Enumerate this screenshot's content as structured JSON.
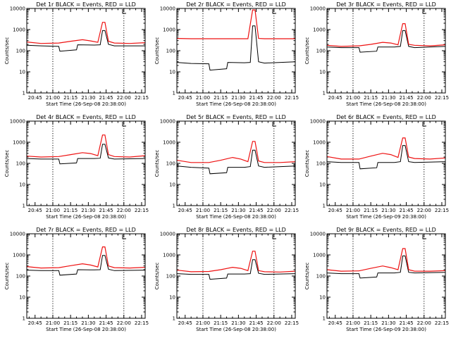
{
  "colors": {
    "events": "#000000",
    "lld": "#ee1111",
    "background": "#ffffff"
  },
  "chart_data": [
    {
      "type": "line",
      "title": "Det 1r BLACK = Events, RED = LLD",
      "xlabel": "Start Time (26-Sep-08 20:38:00)",
      "ylabel": "Counts/sec",
      "x_ticks": [
        "20:45",
        "21:00",
        "21:15",
        "21:30",
        "21:45",
        "22:00",
        "22:15"
      ],
      "y_ticks": [
        "1",
        "10",
        "100",
        "1000",
        "10000"
      ],
      "ylim": [
        1,
        10000
      ],
      "yscale": "log",
      "xlim": [
        "20:38",
        "22:18"
      ],
      "dotted_lines": [
        "21:00",
        "22:00"
      ],
      "series": [
        {
          "name": "Events",
          "color": "#000000",
          "x": [
            "20:38",
            "20:50",
            "21:05",
            "21:06",
            "21:20",
            "21:21",
            "21:35",
            "21:40",
            "21:42",
            "21:44",
            "21:47",
            "21:52",
            "22:18"
          ],
          "y": [
            180,
            170,
            160,
            95,
            110,
            190,
            185,
            190,
            900,
            900,
            200,
            170,
            170
          ]
        },
        {
          "name": "LLD",
          "color": "#ee1111",
          "x": [
            "20:38",
            "20:50",
            "21:05",
            "21:15",
            "21:25",
            "21:32",
            "21:38",
            "21:42",
            "21:44",
            "21:47",
            "21:52",
            "22:05",
            "22:18"
          ],
          "y": [
            260,
            220,
            230,
            280,
            330,
            290,
            250,
            2200,
            2200,
            280,
            230,
            220,
            240
          ]
        }
      ]
    },
    {
      "type": "line",
      "title": "Det 2r BLACK = Events, RED = LLD",
      "xlabel": "Start Time (26-Sep-08 20:38:00)",
      "ylabel": "Counts/sec",
      "x_ticks": [
        "20:45",
        "21:00",
        "21:15",
        "21:30",
        "21:45",
        "22:00",
        "22:15"
      ],
      "y_ticks": [
        "1",
        "10",
        "100",
        "1000",
        "10000"
      ],
      "ylim": [
        1,
        10000
      ],
      "yscale": "log",
      "xlim": [
        "20:38",
        "22:18"
      ],
      "dotted_lines": [
        "21:00",
        "22:00"
      ],
      "series": [
        {
          "name": "Events",
          "color": "#000000",
          "x": [
            "20:38",
            "20:50",
            "21:05",
            "21:06",
            "21:20",
            "21:21",
            "21:35",
            "21:40",
            "21:42",
            "21:44",
            "21:47",
            "21:52",
            "22:18"
          ],
          "y": [
            28,
            25,
            24,
            12,
            14,
            28,
            27,
            28,
            1500,
            1500,
            30,
            26,
            30
          ]
        },
        {
          "name": "LLD",
          "color": "#ee1111",
          "x": [
            "20:38",
            "20:50",
            "21:05",
            "21:15",
            "21:25",
            "21:32",
            "21:38",
            "21:42",
            "21:44",
            "21:47",
            "21:52",
            "22:05",
            "22:18"
          ],
          "y": [
            380,
            370,
            370,
            370,
            370,
            370,
            370,
            8500,
            8500,
            380,
            370,
            370,
            370
          ]
        }
      ]
    },
    {
      "type": "line",
      "title": "Det 3r BLACK = Events, RED = LLD",
      "xlabel": "Start Time (26-Sep-08 20:38:00)",
      "ylabel": "Counts/sec",
      "x_ticks": [
        "20:45",
        "21:00",
        "21:15",
        "21:30",
        "21:45",
        "22:00",
        "22:15"
      ],
      "y_ticks": [
        "1",
        "10",
        "100",
        "1000",
        "10000"
      ],
      "ylim": [
        1,
        10000
      ],
      "yscale": "log",
      "xlim": [
        "20:38",
        "22:18"
      ],
      "dotted_lines": [
        "21:00",
        "22:00"
      ],
      "series": [
        {
          "name": "Events",
          "color": "#000000",
          "x": [
            "20:38",
            "20:50",
            "21:05",
            "21:06",
            "21:20",
            "21:21",
            "21:35",
            "21:40",
            "21:42",
            "21:44",
            "21:47",
            "21:52",
            "22:18"
          ],
          "y": [
            150,
            140,
            140,
            85,
            95,
            150,
            150,
            160,
            900,
            900,
            160,
            140,
            160
          ]
        },
        {
          "name": "LLD",
          "color": "#ee1111",
          "x": [
            "20:38",
            "20:50",
            "21:05",
            "21:15",
            "21:25",
            "21:32",
            "21:38",
            "21:42",
            "21:44",
            "21:47",
            "21:52",
            "22:05",
            "22:18"
          ],
          "y": [
            180,
            160,
            170,
            200,
            250,
            230,
            190,
            1900,
            1900,
            200,
            180,
            170,
            190
          ]
        }
      ]
    },
    {
      "type": "line",
      "title": "Det 4r BLACK = Events, RED = LLD",
      "xlabel": "Start Time (26-Sep-08 20:38:00)",
      "ylabel": "Counts/sec",
      "x_ticks": [
        "20:45",
        "21:00",
        "21:15",
        "21:30",
        "21:45",
        "22:00",
        "22:15"
      ],
      "y_ticks": [
        "1",
        "10",
        "100",
        "1000",
        "10000"
      ],
      "ylim": [
        1,
        10000
      ],
      "yscale": "log",
      "xlim": [
        "20:38",
        "22:18"
      ],
      "dotted_lines": [
        "21:00",
        "22:00"
      ],
      "series": [
        {
          "name": "Events",
          "color": "#000000",
          "x": [
            "20:38",
            "20:50",
            "21:05",
            "21:06",
            "21:20",
            "21:21",
            "21:35",
            "21:40",
            "21:42",
            "21:44",
            "21:47",
            "21:52",
            "22:18"
          ],
          "y": [
            170,
            160,
            160,
            95,
            105,
            170,
            170,
            175,
            800,
            800,
            180,
            160,
            170
          ]
        },
        {
          "name": "LLD",
          "color": "#ee1111",
          "x": [
            "20:38",
            "20:50",
            "21:05",
            "21:15",
            "21:25",
            "21:32",
            "21:38",
            "21:42",
            "21:44",
            "21:47",
            "21:52",
            "22:05",
            "22:18"
          ],
          "y": [
            220,
            200,
            210,
            260,
            320,
            290,
            230,
            2200,
            2200,
            260,
            210,
            200,
            230
          ]
        }
      ]
    },
    {
      "type": "line",
      "title": "Det 5r BLACK = Events, RED = LLD",
      "xlabel": "Start Time (26-Sep-08 20:38:00)",
      "ylabel": "Counts/sec",
      "x_ticks": [
        "20:45",
        "21:00",
        "21:15",
        "21:30",
        "21:45",
        "22:00",
        "22:15"
      ],
      "y_ticks": [
        "1",
        "10",
        "100",
        "1000",
        "10000"
      ],
      "ylim": [
        1,
        10000
      ],
      "yscale": "log",
      "xlim": [
        "20:38",
        "22:18"
      ],
      "dotted_lines": [
        "21:00",
        "22:00"
      ],
      "series": [
        {
          "name": "Events",
          "color": "#000000",
          "x": [
            "20:38",
            "20:50",
            "21:05",
            "21:06",
            "21:20",
            "21:21",
            "21:35",
            "21:40",
            "21:42",
            "21:44",
            "21:47",
            "21:52",
            "22:18"
          ],
          "y": [
            75,
            65,
            60,
            32,
            36,
            65,
            65,
            70,
            420,
            420,
            75,
            65,
            75
          ]
        },
        {
          "name": "LLD",
          "color": "#ee1111",
          "x": [
            "20:38",
            "20:50",
            "21:05",
            "21:15",
            "21:25",
            "21:32",
            "21:38",
            "21:42",
            "21:44",
            "21:47",
            "21:52",
            "22:05",
            "22:18"
          ],
          "y": [
            140,
            110,
            110,
            140,
            190,
            160,
            120,
            1100,
            1100,
            130,
            110,
            110,
            120
          ]
        }
      ]
    },
    {
      "type": "line",
      "title": "Det 6r BLACK = Events, RED = LLD",
      "xlabel": "Start Time (26-Sep-09 20:38:00)",
      "ylabel": "Counts/sec",
      "x_ticks": [
        "20:45",
        "21:00",
        "21:15",
        "21:30",
        "21:45",
        "22:00",
        "22:15"
      ],
      "y_ticks": [
        "1",
        "10",
        "100",
        "1000",
        "10000"
      ],
      "ylim": [
        1,
        10000
      ],
      "yscale": "log",
      "xlim": [
        "20:38",
        "22:18"
      ],
      "dotted_lines": [
        "21:00",
        "22:00"
      ],
      "series": [
        {
          "name": "Events",
          "color": "#000000",
          "x": [
            "20:38",
            "20:50",
            "21:05",
            "21:06",
            "21:20",
            "21:21",
            "21:35",
            "21:40",
            "21:42",
            "21:44",
            "21:47",
            "21:52",
            "22:18"
          ],
          "y": [
            120,
            110,
            110,
            55,
            62,
            110,
            110,
            120,
            700,
            700,
            120,
            110,
            120
          ]
        },
        {
          "name": "LLD",
          "color": "#ee1111",
          "x": [
            "20:38",
            "20:50",
            "21:05",
            "21:15",
            "21:25",
            "21:32",
            "21:38",
            "21:42",
            "21:44",
            "21:47",
            "21:52",
            "22:05",
            "22:18"
          ],
          "y": [
            210,
            160,
            160,
            220,
            300,
            260,
            190,
            1600,
            1600,
            200,
            170,
            160,
            180
          ]
        }
      ]
    },
    {
      "type": "line",
      "title": "Det 7r BLACK = Events, RED = LLD",
      "xlabel": "Start Time (26-Sep-08 20:38:00)",
      "ylabel": "Counts/sec",
      "x_ticks": [
        "20:45",
        "21:00",
        "21:15",
        "21:30",
        "21:45",
        "22:00",
        "22:15"
      ],
      "y_ticks": [
        "1",
        "10",
        "100",
        "1000",
        "10000"
      ],
      "ylim": [
        1,
        10000
      ],
      "yscale": "log",
      "xlim": [
        "20:38",
        "22:18"
      ],
      "dotted_lines": [
        "21:00",
        "22:00"
      ],
      "series": [
        {
          "name": "Events",
          "color": "#000000",
          "x": [
            "20:38",
            "20:50",
            "21:05",
            "21:06",
            "21:20",
            "21:21",
            "21:35",
            "21:40",
            "21:42",
            "21:44",
            "21:47",
            "21:52",
            "22:18"
          ],
          "y": [
            190,
            180,
            180,
            110,
            125,
            200,
            195,
            200,
            950,
            950,
            210,
            180,
            190
          ]
        },
        {
          "name": "LLD",
          "color": "#ee1111",
          "x": [
            "20:38",
            "20:50",
            "21:05",
            "21:15",
            "21:25",
            "21:32",
            "21:38",
            "21:42",
            "21:44",
            "21:47",
            "21:52",
            "22:05",
            "22:18"
          ],
          "y": [
            280,
            240,
            250,
            310,
            380,
            330,
            270,
            2400,
            2400,
            300,
            250,
            240,
            260
          ]
        }
      ]
    },
    {
      "type": "line",
      "title": "Det 8r BLACK = Events, RED = LLD",
      "xlabel": "Start Time (26-Sep-08 20:38:00)",
      "ylabel": "Counts/sec",
      "x_ticks": [
        "20:45",
        "21:00",
        "21:15",
        "21:30",
        "21:45",
        "22:00",
        "22:15"
      ],
      "y_ticks": [
        "1",
        "10",
        "100",
        "1000",
        "10000"
      ],
      "ylim": [
        1,
        10000
      ],
      "yscale": "log",
      "xlim": [
        "20:38",
        "22:18"
      ],
      "dotted_lines": [
        "21:00",
        "22:00"
      ],
      "series": [
        {
          "name": "Events",
          "color": "#000000",
          "x": [
            "20:38",
            "20:50",
            "21:05",
            "21:06",
            "21:20",
            "21:21",
            "21:35",
            "21:40",
            "21:42",
            "21:44",
            "21:47",
            "21:52",
            "22:18"
          ],
          "y": [
            130,
            120,
            120,
            70,
            80,
            125,
            125,
            130,
            600,
            600,
            135,
            120,
            130
          ]
        },
        {
          "name": "LLD",
          "color": "#ee1111",
          "x": [
            "20:38",
            "20:50",
            "21:05",
            "21:15",
            "21:25",
            "21:32",
            "21:38",
            "21:42",
            "21:44",
            "21:47",
            "21:52",
            "22:05",
            "22:18"
          ],
          "y": [
            190,
            160,
            165,
            200,
            260,
            230,
            180,
            1500,
            1500,
            180,
            160,
            155,
            170
          ]
        }
      ]
    },
    {
      "type": "line",
      "title": "Det 9r BLACK = Events, RED = LLD",
      "xlabel": "Start Time (26-Sep-09 20:38:00)",
      "ylabel": "Counts/sec",
      "x_ticks": [
        "20:45",
        "21:00",
        "21:15",
        "21:30",
        "21:45",
        "22:00",
        "22:15"
      ],
      "y_ticks": [
        "1",
        "10",
        "100",
        "1000",
        "10000"
      ],
      "ylim": [
        1,
        10000
      ],
      "yscale": "log",
      "xlim": [
        "20:38",
        "22:18"
      ],
      "dotted_lines": [
        "21:00",
        "22:00"
      ],
      "series": [
        {
          "name": "Events",
          "color": "#000000",
          "x": [
            "20:38",
            "20:50",
            "21:05",
            "21:06",
            "21:20",
            "21:21",
            "21:35",
            "21:40",
            "21:42",
            "21:44",
            "21:47",
            "21:52",
            "22:18"
          ],
          "y": [
            140,
            130,
            130,
            80,
            90,
            140,
            140,
            150,
            900,
            900,
            150,
            140,
            150
          ]
        },
        {
          "name": "LLD",
          "color": "#ee1111",
          "x": [
            "20:38",
            "20:50",
            "21:05",
            "21:15",
            "21:25",
            "21:32",
            "21:38",
            "21:42",
            "21:44",
            "21:47",
            "21:52",
            "22:05",
            "22:18"
          ],
          "y": [
            200,
            170,
            175,
            230,
            300,
            250,
            200,
            2000,
            2000,
            200,
            170,
            170,
            180
          ]
        }
      ]
    }
  ]
}
